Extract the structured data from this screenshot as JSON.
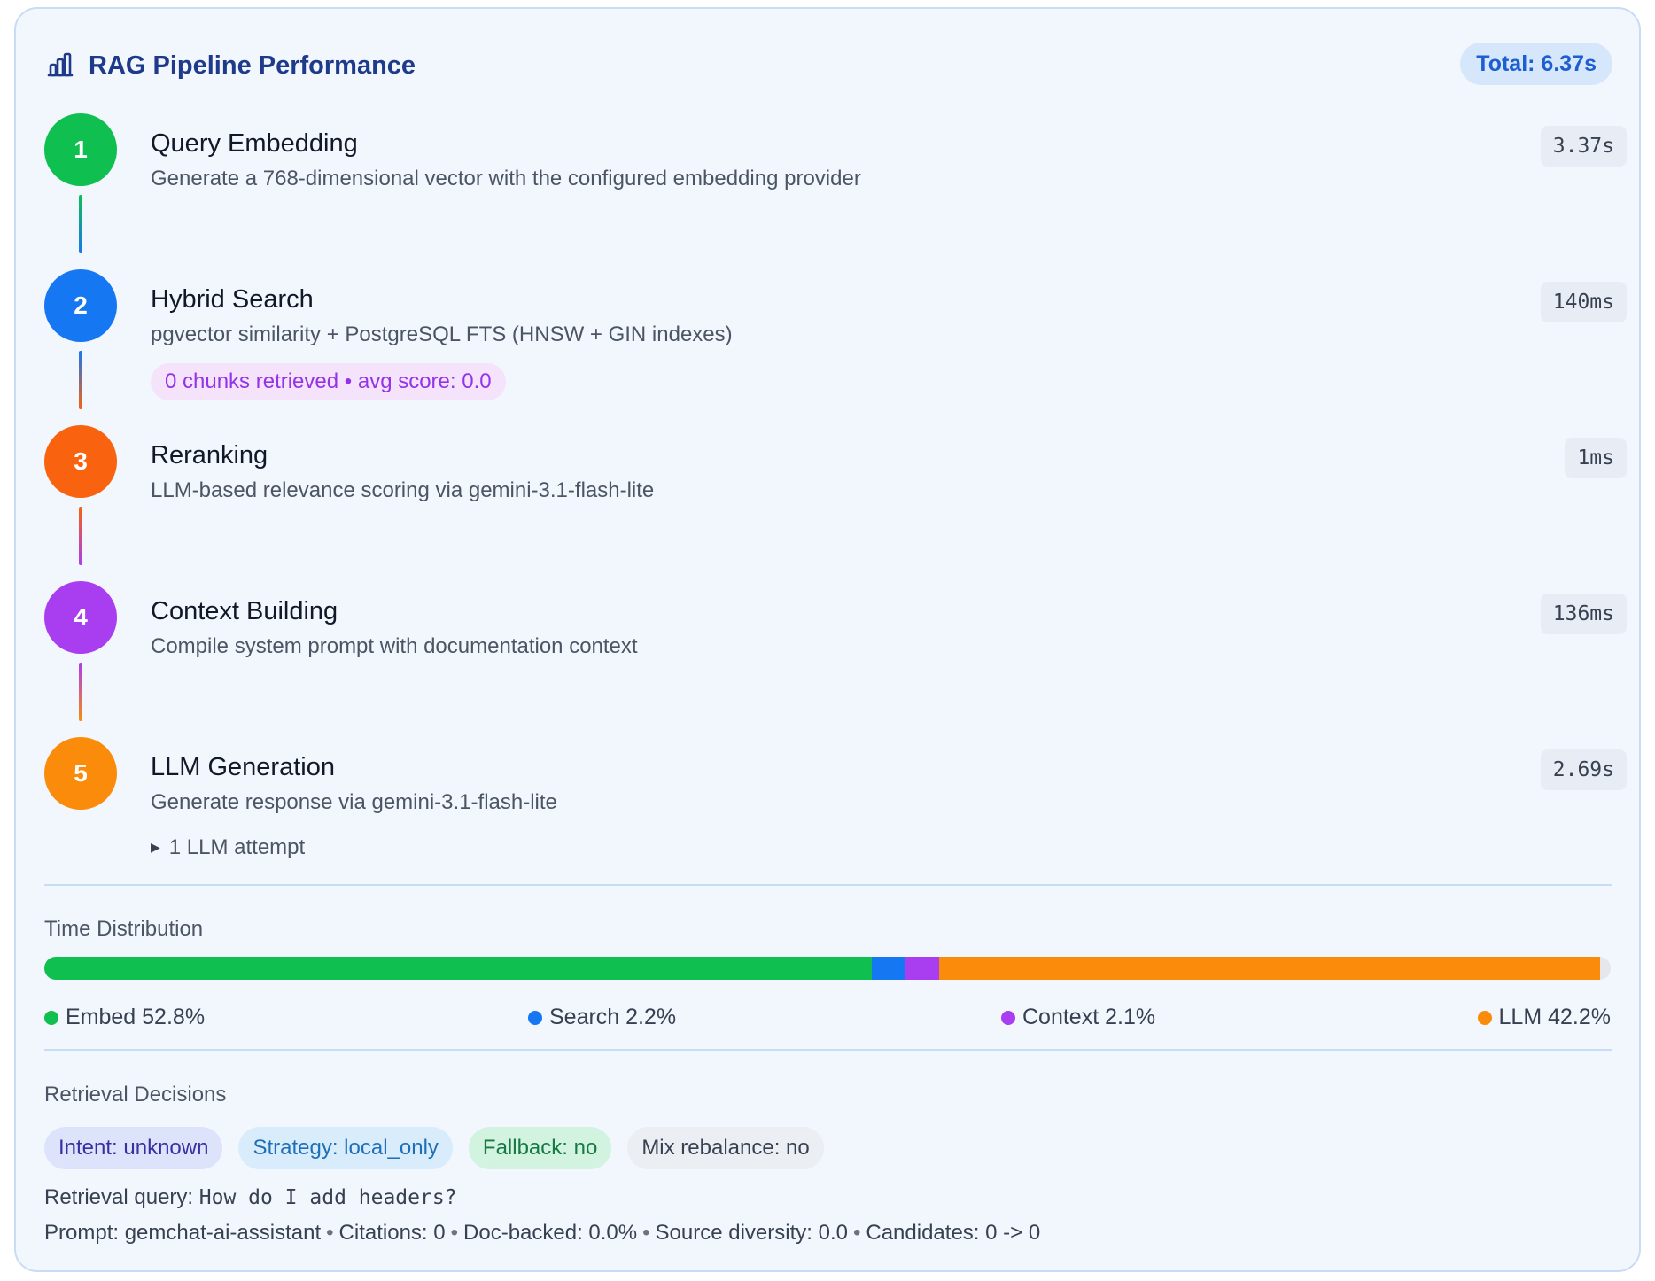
{
  "header": {
    "title": "RAG Pipeline Performance",
    "icon": "bar-chart-icon",
    "total_label": "Total: 6.37s"
  },
  "steps": [
    {
      "number": "1",
      "title": "Query Embedding",
      "description": "Generate a 768-dimensional vector with the configured embedding provider",
      "duration": "3.37s",
      "color": "#0fbf4f"
    },
    {
      "number": "2",
      "title": "Hybrid Search",
      "description": "pgvector similarity + PostgreSQL FTS (HNSW + GIN indexes)",
      "duration": "140ms",
      "color": "#1677f2",
      "badge": "0 chunks retrieved • avg score: 0.0"
    },
    {
      "number": "3",
      "title": "Reranking",
      "description": "LLM-based relevance scoring via gemini-3.1-flash-lite",
      "duration": "1ms",
      "color": "#f9620f"
    },
    {
      "number": "4",
      "title": "Context Building",
      "description": "Compile system prompt with documentation context",
      "duration": "136ms",
      "color": "#a83ef0"
    },
    {
      "number": "5",
      "title": "LLM Generation",
      "description": "Generate response via gemini-3.1-flash-lite",
      "duration": "2.69s",
      "color": "#fb8c0b",
      "attempts_label": "1 LLM attempt"
    }
  ],
  "time_distribution": {
    "label": "Time Distribution",
    "segments": [
      {
        "name": "Embed",
        "percent": 52.8,
        "label": "Embed 52.8%",
        "color": "#0fbf4f"
      },
      {
        "name": "Search",
        "percent": 2.2,
        "label": "Search 2.2%",
        "color": "#1677f2"
      },
      {
        "name": "Context",
        "percent": 2.1,
        "label": "Context 2.1%",
        "color": "#a83ef0"
      },
      {
        "name": "LLM",
        "percent": 42.2,
        "label": "LLM 42.2%",
        "color": "#fb8c0b"
      }
    ]
  },
  "retrieval": {
    "label": "Retrieval Decisions",
    "chips": {
      "intent": "Intent: unknown",
      "strategy": "Strategy: local_only",
      "fallback": "Fallback: no",
      "mix": "Mix rebalance: no"
    },
    "query_label": "Retrieval query:",
    "query_value": "How do I add headers?",
    "stats": {
      "prompt_label": "Prompt:",
      "prompt_value": "gemchat-ai-assistant",
      "citations": "Citations: 0",
      "doc_backed": "Doc-backed: 0.0%",
      "source_diversity": "Source diversity: 0.0",
      "candidates": "Candidates: 0 -> 0"
    }
  }
}
